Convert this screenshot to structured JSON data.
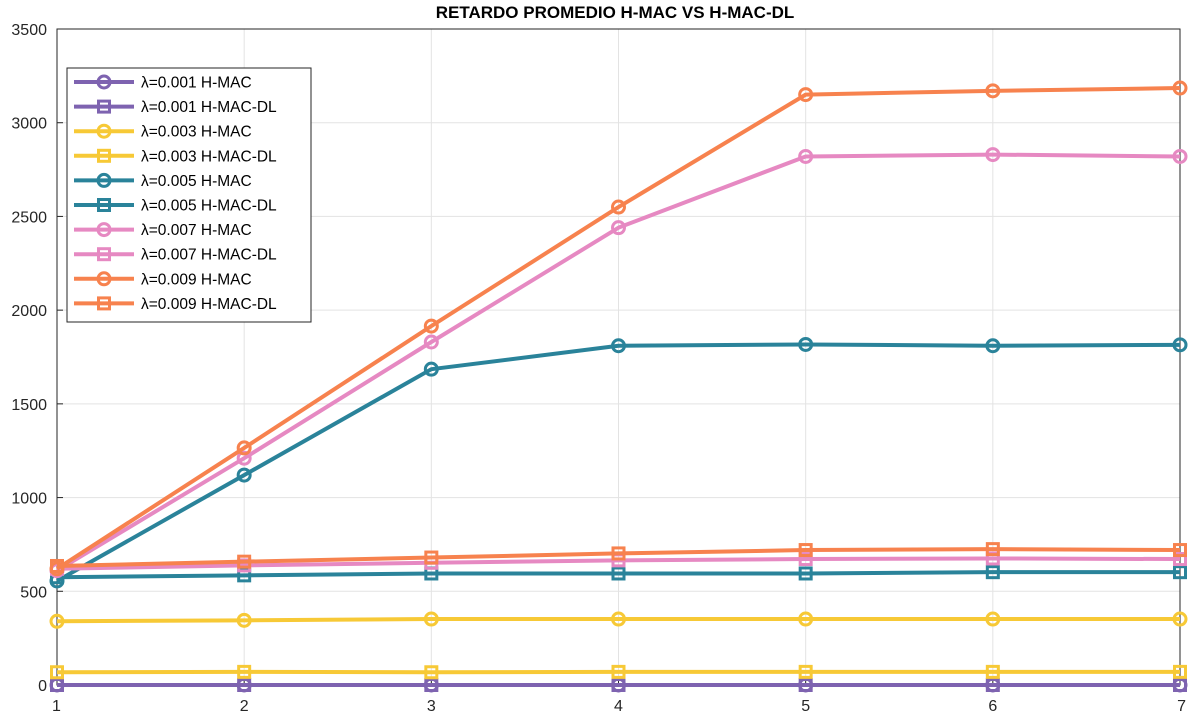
{
  "chart_data": {
    "type": "line",
    "title": "RETARDO PROMEDIO  H-MAC  VS  H-MAC-DL",
    "xlabel": "",
    "ylabel": "",
    "x": [
      1,
      2,
      3,
      4,
      5,
      6,
      7
    ],
    "xlim": [
      1,
      7
    ],
    "ylim": [
      0,
      3500
    ],
    "xticks": [
      "1",
      "2",
      "3",
      "4",
      "5",
      "6",
      "7"
    ],
    "yticks": [
      "0",
      "500",
      "1000",
      "1500",
      "2000",
      "2500",
      "3000",
      "3500"
    ],
    "grid": true,
    "legend_position": "top-left",
    "series": [
      {
        "name": "λ=0.001 H-MAC",
        "marker": "circle",
        "color": "#7e63b0",
        "values": [
          0,
          0,
          0,
          0,
          0,
          0,
          0
        ]
      },
      {
        "name": "λ=0.001 H-MAC-DL",
        "marker": "square",
        "color": "#7e63b0",
        "values": [
          0,
          0,
          0,
          0,
          0,
          0,
          0
        ]
      },
      {
        "name": "λ=0.003 H-MAC",
        "marker": "circle",
        "color": "#f7c936",
        "values": [
          340,
          345,
          352,
          352,
          352,
          352,
          352
        ]
      },
      {
        "name": "λ=0.003 H-MAC-DL",
        "marker": "square",
        "color": "#f7c936",
        "values": [
          68,
          70,
          68,
          70,
          70,
          70,
          70
        ]
      },
      {
        "name": "λ=0.005 H-MAC",
        "marker": "circle",
        "color": "#2a839a",
        "values": [
          555,
          1120,
          1685,
          1810,
          1817,
          1810,
          1815
        ]
      },
      {
        "name": "λ=0.005 H-MAC-DL",
        "marker": "square",
        "color": "#2a839a",
        "values": [
          575,
          585,
          595,
          595,
          595,
          602,
          602
        ]
      },
      {
        "name": "λ=0.007 H-MAC",
        "marker": "circle",
        "color": "#e689c2",
        "values": [
          610,
          1210,
          1830,
          2440,
          2820,
          2830,
          2820
        ]
      },
      {
        "name": "λ=0.007 H-MAC-DL",
        "marker": "square",
        "color": "#e689c2",
        "values": [
          620,
          638,
          652,
          665,
          672,
          675,
          672
        ]
      },
      {
        "name": "λ=0.009 H-MAC",
        "marker": "circle",
        "color": "#f7824e",
        "values": [
          620,
          1265,
          1915,
          2550,
          3150,
          3170,
          3185
        ]
      },
      {
        "name": "λ=0.009 H-MAC-DL",
        "marker": "square",
        "color": "#f7824e",
        "values": [
          635,
          658,
          680,
          702,
          720,
          725,
          720
        ]
      }
    ]
  }
}
